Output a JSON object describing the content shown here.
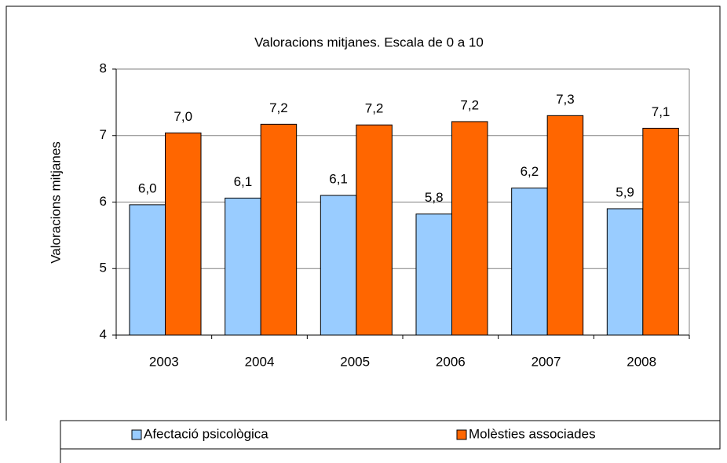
{
  "chart_data": {
    "type": "bar",
    "title": "Valoracions mitjanes. Escala de 0 a 10",
    "y_label": "Valoracions mitjanes",
    "categories": [
      "2003",
      "2004",
      "2005",
      "2006",
      "2007",
      "2008"
    ],
    "series": [
      {
        "name": "Afectació psicològica",
        "color": "#99ccff",
        "values": [
          5.96,
          6.06,
          6.1,
          5.82,
          6.21,
          5.9
        ],
        "value_labels": [
          "6,0",
          "6,1",
          "6,1",
          "5,8",
          "6,2",
          "5,9"
        ]
      },
      {
        "name": "Molèsties associades",
        "color": "#ff6600",
        "values": [
          7.04,
          7.17,
          7.16,
          7.21,
          7.3,
          7.11
        ],
        "value_labels": [
          "7,0",
          "7,2",
          "7,2",
          "7,2",
          "7,3",
          "7,1"
        ]
      }
    ],
    "ylim": [
      4,
      8
    ],
    "yticks": [
      4,
      5,
      6,
      7,
      8
    ],
    "grid": true,
    "legend": "bottom"
  }
}
